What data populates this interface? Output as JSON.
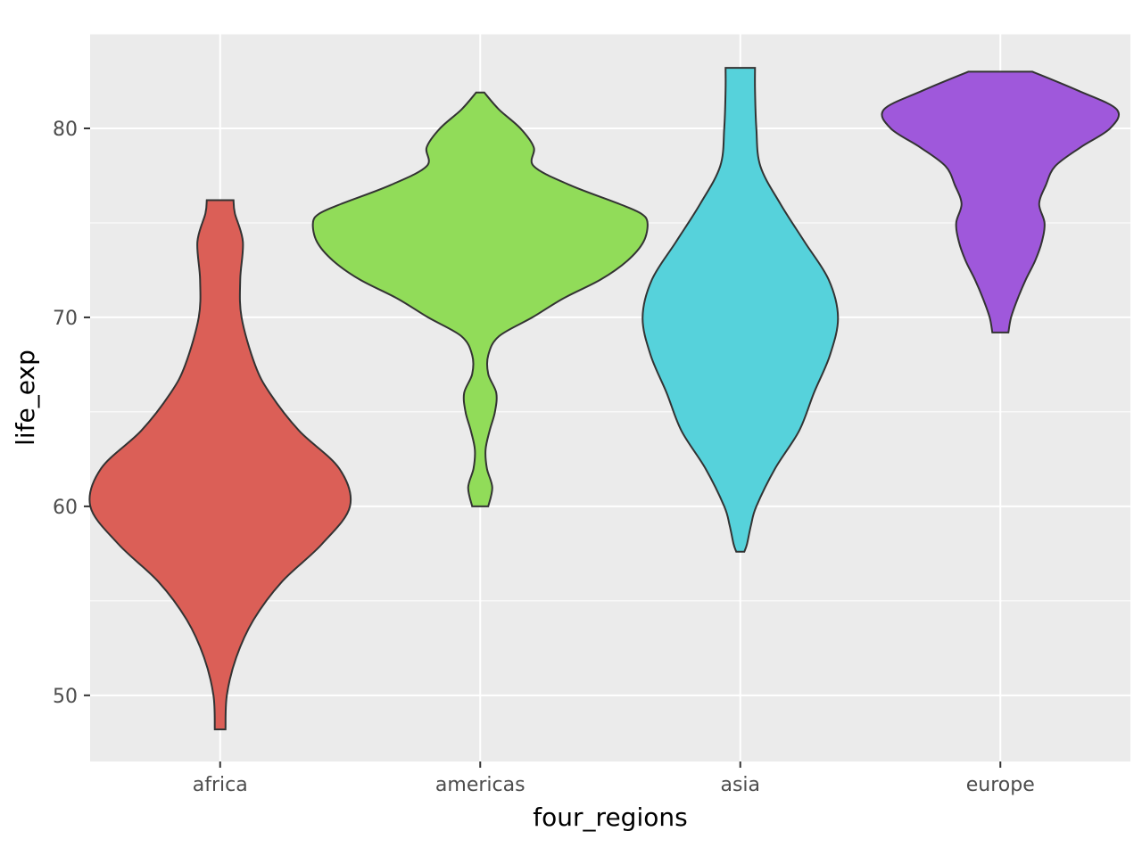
{
  "chart_data": {
    "type": "violin",
    "xlabel": "four_regions",
    "ylabel": "life_exp",
    "ylim": [
      46.5,
      85.0
    ],
    "yticks": [
      50,
      60,
      70,
      80
    ],
    "ytick_labels": [
      "50",
      "60",
      "70",
      "80"
    ],
    "grid": true,
    "panel_background": "#ebebeb",
    "grid_color": "#ffffff",
    "outline_color": "#333333",
    "categories": [
      "africa",
      "americas",
      "asia",
      "europe"
    ],
    "series": [
      {
        "category": "africa",
        "color": "#db5f57",
        "min": 48.2,
        "max": 76.2,
        "density": [
          [
            48.2,
            0.04
          ],
          [
            50,
            0.05
          ],
          [
            52,
            0.12
          ],
          [
            54,
            0.25
          ],
          [
            56,
            0.46
          ],
          [
            58,
            0.76
          ],
          [
            60,
            0.97
          ],
          [
            62,
            0.89
          ],
          [
            64,
            0.59
          ],
          [
            66,
            0.37
          ],
          [
            67.5,
            0.26
          ],
          [
            70,
            0.16
          ],
          [
            72,
            0.15
          ],
          [
            74,
            0.17
          ],
          [
            75.5,
            0.11
          ],
          [
            76.2,
            0.1
          ]
        ]
      },
      {
        "category": "americas",
        "color": "#91dc59",
        "min": 60.0,
        "max": 81.9,
        "density": [
          [
            60,
            0.06
          ],
          [
            61,
            0.09
          ],
          [
            62,
            0.05
          ],
          [
            63,
            0.04
          ],
          [
            64,
            0.07
          ],
          [
            65,
            0.11
          ],
          [
            66,
            0.12
          ],
          [
            67,
            0.06
          ],
          [
            68,
            0.06
          ],
          [
            69,
            0.14
          ],
          [
            70,
            0.39
          ],
          [
            71,
            0.62
          ],
          [
            72,
            0.9
          ],
          [
            73,
            1.1
          ],
          [
            74,
            1.22
          ],
          [
            75,
            1.25
          ],
          [
            75.5,
            1.2
          ],
          [
            76,
            1.04
          ],
          [
            77,
            0.67
          ],
          [
            78,
            0.4
          ],
          [
            79,
            0.4
          ],
          [
            80,
            0.3
          ],
          [
            81,
            0.14
          ],
          [
            81.9,
            0.03
          ]
        ]
      },
      {
        "category": "asia",
        "color": "#56d2db",
        "min": 57.6,
        "max": 83.2,
        "density": [
          [
            57.6,
            0.03
          ],
          [
            58,
            0.05
          ],
          [
            59,
            0.08
          ],
          [
            60,
            0.12
          ],
          [
            62,
            0.26
          ],
          [
            64,
            0.44
          ],
          [
            66,
            0.55
          ],
          [
            68,
            0.67
          ],
          [
            70,
            0.73
          ],
          [
            72,
            0.66
          ],
          [
            74,
            0.48
          ],
          [
            76,
            0.3
          ],
          [
            78,
            0.15
          ],
          [
            80,
            0.12
          ],
          [
            82,
            0.11
          ],
          [
            83.2,
            0.11
          ]
        ]
      },
      {
        "category": "europe",
        "color": "#9f58db",
        "min": 69.2,
        "max": 83.0,
        "density": [
          [
            69.2,
            0.06
          ],
          [
            70,
            0.08
          ],
          [
            71,
            0.13
          ],
          [
            72,
            0.19
          ],
          [
            73,
            0.26
          ],
          [
            74,
            0.31
          ],
          [
            75,
            0.33
          ],
          [
            76,
            0.29
          ],
          [
            77,
            0.34
          ],
          [
            78,
            0.41
          ],
          [
            79,
            0.6
          ],
          [
            80,
            0.82
          ],
          [
            81,
            0.87
          ],
          [
            82,
            0.58
          ],
          [
            83,
            0.24
          ]
        ]
      }
    ]
  }
}
